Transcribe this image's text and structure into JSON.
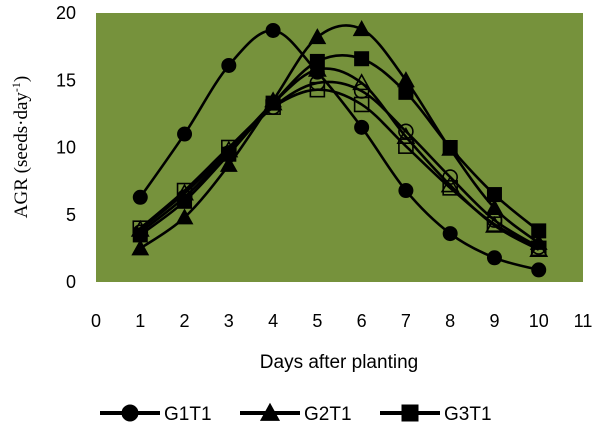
{
  "chart_data": {
    "type": "line",
    "xlabel": "Days after planting",
    "ylabel": "AGR (seeds·day",
    "ylabel_sup": "-1",
    "ylabel_close": ")",
    "xlim": [
      0,
      11
    ],
    "ylim": [
      0,
      20
    ],
    "x_ticks": [
      "0",
      "1",
      "2",
      "3",
      "4",
      "5",
      "6",
      "7",
      "8",
      "9",
      "10",
      "11"
    ],
    "y_ticks": [
      "0",
      "5",
      "10",
      "15",
      "20"
    ],
    "grid": false,
    "plot_background": "#76923c",
    "legend_position": "bottom",
    "x": [
      1,
      2,
      3,
      4,
      5,
      6,
      7,
      8,
      9,
      10
    ],
    "series": [
      {
        "name": "G1T1",
        "marker": "circle",
        "filled": true,
        "values": [
          6.3,
          11.0,
          16.1,
          18.7,
          15.6,
          11.5,
          6.8,
          3.6,
          1.8,
          0.9
        ]
      },
      {
        "name": "G2T1",
        "marker": "triangle",
        "filled": true,
        "values": [
          2.5,
          4.8,
          8.7,
          13.5,
          18.2,
          18.8,
          15.0,
          9.9,
          5.5,
          2.9
        ]
      },
      {
        "name": "G3T1",
        "marker": "square",
        "filled": true,
        "values": [
          3.5,
          6.0,
          9.5,
          13.3,
          16.4,
          16.6,
          14.1,
          10.0,
          6.5,
          3.8
        ]
      },
      {
        "name": "",
        "marker": "circle",
        "filled": false,
        "values": [
          3.7,
          6.3,
          9.6,
          13.0,
          14.8,
          14.2,
          11.2,
          7.8,
          4.6,
          2.6
        ]
      },
      {
        "name": "",
        "marker": "triangle",
        "filled": false,
        "values": [
          3.9,
          6.6,
          9.8,
          13.3,
          15.8,
          14.8,
          10.8,
          7.2,
          4.2,
          2.4
        ]
      },
      {
        "name": "",
        "marker": "square",
        "filled": false,
        "values": [
          4.0,
          6.8,
          10.0,
          13.0,
          14.3,
          13.2,
          10.1,
          7.0,
          4.3,
          2.5
        ]
      }
    ],
    "legend": [
      {
        "label": "G1T1",
        "marker": "circle"
      },
      {
        "label": "G2T1",
        "marker": "triangle"
      },
      {
        "label": "G3T1",
        "marker": "square"
      }
    ]
  }
}
